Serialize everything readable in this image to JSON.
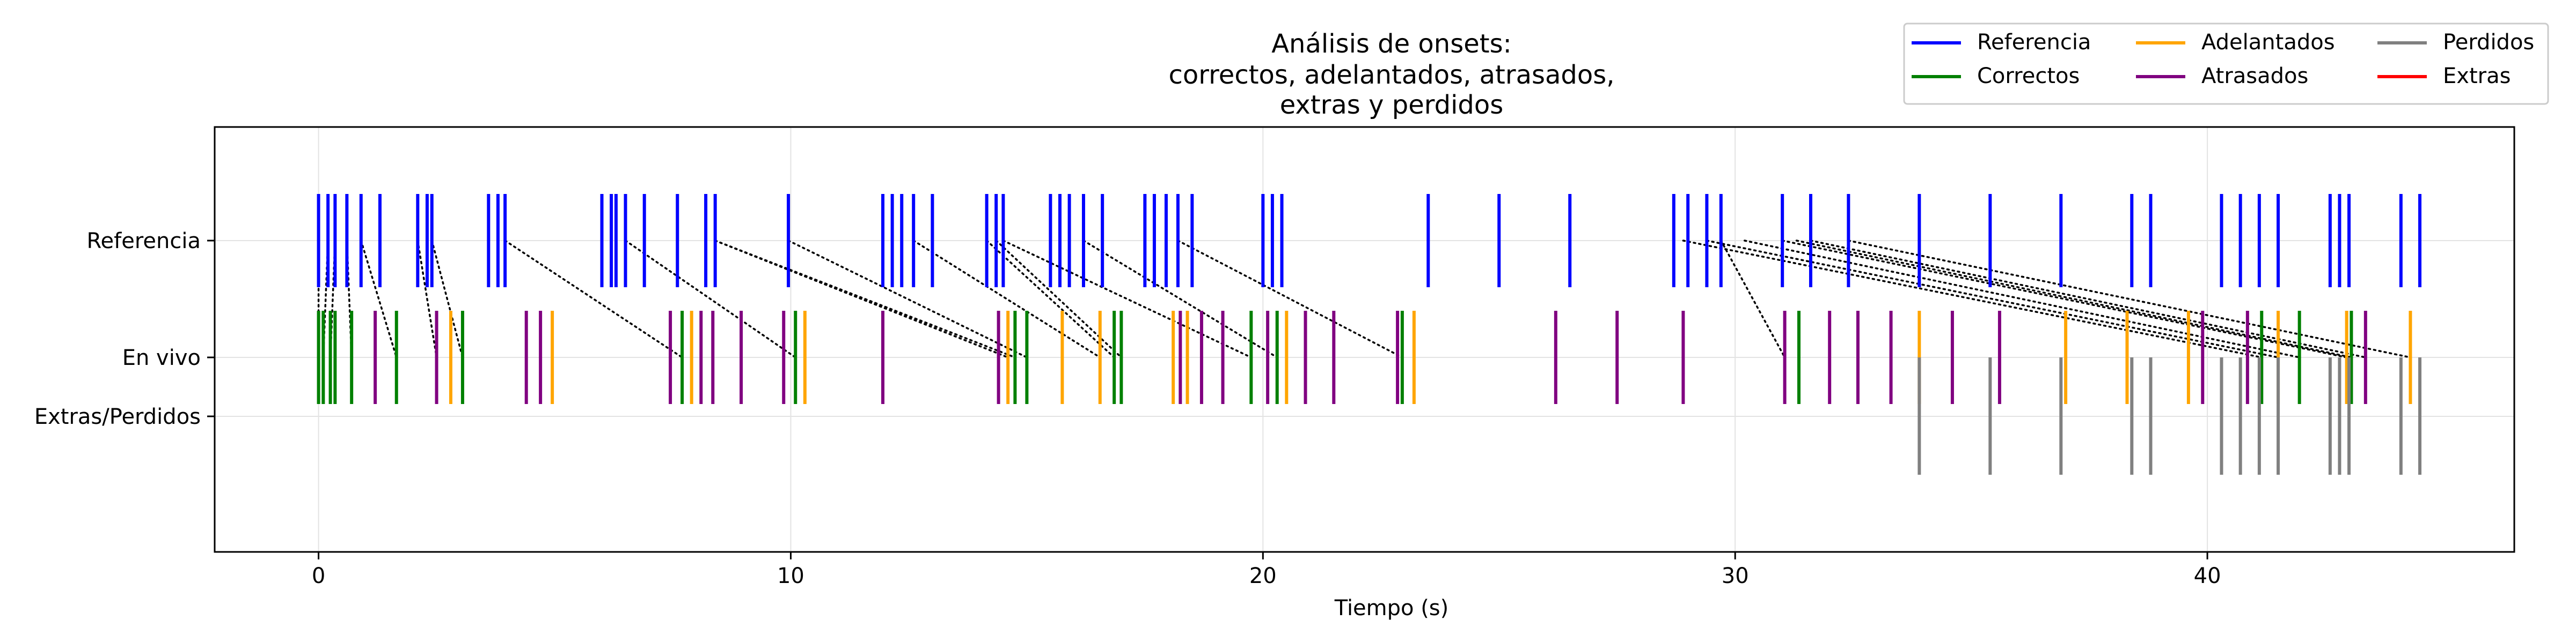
{
  "chart_data": {
    "type": "event-raster",
    "title_lines": [
      "Análisis de onsets:",
      "correctos, adelantados, atrasados,",
      "extras y perdidos"
    ],
    "xlabel": "Tiempo (s)",
    "xlim": [
      -2.2,
      46.5
    ],
    "xticks": [
      0,
      10,
      20,
      30,
      40
    ],
    "grid": true,
    "rows": [
      "Referencia",
      "En vivo",
      "Extras/Perdidos"
    ],
    "legend_position": "top-right",
    "legend": [
      {
        "name": "Referencia",
        "color": "#0000ff"
      },
      {
        "name": "Correctos",
        "color": "#008000"
      },
      {
        "name": "Adelantados",
        "color": "#ffa500"
      },
      {
        "name": "Atrasados",
        "color": "#800080"
      },
      {
        "name": "Perdidos",
        "color": "#808080"
      },
      {
        "name": "Extras",
        "color": "#ff0000"
      }
    ],
    "colors": {
      "referencia": "#0000ff",
      "correctos": "#008000",
      "adelantados": "#ffa500",
      "atrasados": "#800080",
      "perdidos": "#808080",
      "extras": "#ff0000",
      "links": "#000000"
    },
    "referencia": [
      0.0,
      0.2,
      0.35,
      0.6,
      0.9,
      1.3,
      2.1,
      2.3,
      2.4,
      3.6,
      3.8,
      3.95,
      6.0,
      6.2,
      6.3,
      6.5,
      6.9,
      7.6,
      8.2,
      8.4,
      9.95,
      11.95,
      12.15,
      12.35,
      12.6,
      13.0,
      14.15,
      14.35,
      14.5,
      15.5,
      15.7,
      15.9,
      16.2,
      16.6,
      17.5,
      17.7,
      17.95,
      18.2,
      18.5,
      20.0,
      20.2,
      20.4,
      23.5,
      25.0,
      26.5,
      28.7,
      29.0,
      29.4,
      29.7,
      31.0,
      31.6,
      32.4,
      33.9,
      35.4,
      36.9,
      38.4,
      38.8,
      40.3,
      40.7,
      41.1,
      41.5,
      42.6,
      42.8,
      43.0,
      44.1,
      44.5
    ],
    "correctos": [
      0.0,
      0.1,
      0.25,
      0.35,
      0.7,
      1.65,
      3.05,
      7.7,
      10.1,
      14.75,
      15.0,
      16.85,
      17.0,
      19.75,
      20.3,
      22.95,
      31.35,
      41.15,
      41.95,
      43.05
    ],
    "adelantados": [
      2.8,
      4.95,
      7.9,
      10.3,
      14.6,
      15.75,
      16.55,
      18.1,
      18.4,
      20.5,
      23.2,
      33.9,
      37.0,
      38.3,
      39.6,
      41.5,
      42.95,
      44.3
    ],
    "atrasados": [
      1.2,
      2.5,
      4.4,
      4.7,
      7.45,
      8.1,
      8.35,
      8.95,
      9.85,
      11.95,
      14.4,
      18.25,
      18.7,
      19.15,
      20.1,
      20.9,
      21.5,
      22.85,
      26.2,
      27.5,
      28.9,
      31.05,
      32.0,
      32.6,
      33.3,
      34.6,
      35.6,
      39.9,
      40.85,
      43.35
    ],
    "perdidos": [
      33.9,
      35.4,
      36.9,
      38.4,
      38.8,
      40.3,
      40.7,
      41.1,
      41.5,
      42.6,
      42.8,
      43.0,
      44.1,
      44.5
    ],
    "extras": [],
    "links": [
      [
        0.0,
        0.0
      ],
      [
        0.2,
        0.1
      ],
      [
        0.35,
        0.25
      ],
      [
        0.6,
        0.7
      ],
      [
        0.9,
        1.65
      ],
      [
        2.1,
        2.5
      ],
      [
        2.4,
        3.05
      ],
      [
        3.95,
        7.7
      ],
      [
        6.5,
        10.1
      ],
      [
        8.4,
        14.6
      ],
      [
        8.4,
        14.75
      ],
      [
        9.95,
        15.0
      ],
      [
        12.6,
        16.55
      ],
      [
        14.15,
        16.85
      ],
      [
        14.35,
        17.0
      ],
      [
        14.5,
        19.75
      ],
      [
        16.2,
        20.3
      ],
      [
        18.2,
        22.95
      ],
      [
        29.7,
        31.05
      ],
      [
        28.9,
        41.15
      ],
      [
        29.4,
        41.5
      ],
      [
        30.2,
        41.95
      ],
      [
        31.0,
        42.95
      ],
      [
        31.3,
        43.05
      ],
      [
        31.6,
        43.35
      ],
      [
        32.4,
        44.3
      ]
    ]
  }
}
